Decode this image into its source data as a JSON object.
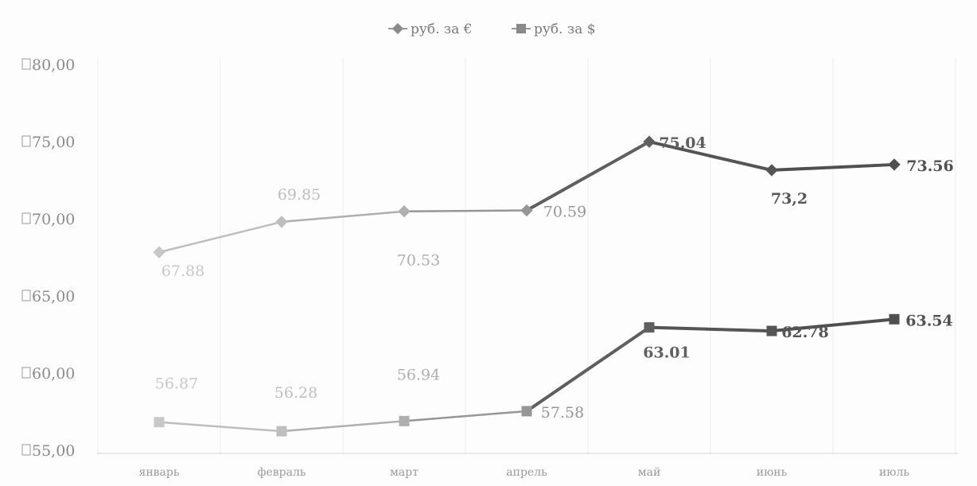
{
  "chart_data": {
    "type": "line",
    "categories": [
      "январь",
      "февраль",
      "март",
      "апрель",
      "май",
      "июнь",
      "июль"
    ],
    "series": [
      {
        "name": "руб. за €",
        "values": [
          67.88,
          69.85,
          70.53,
          70.59,
          75.04,
          73.2,
          73.56
        ],
        "labels": [
          "67.88",
          "69.85",
          "70.53",
          "70.59",
          "75.04",
          "73,2",
          "73.56"
        ]
      },
      {
        "name": "руб. за $",
        "values": [
          56.87,
          56.28,
          56.94,
          57.58,
          63.01,
          62.78,
          63.54
        ],
        "labels": [
          "56.87",
          "56.28",
          "56.94",
          "57.58",
          "63.01",
          "62.78",
          "63.54"
        ]
      }
    ],
    "y_ticks": [
      "80,00",
      "75,00",
      "70,00",
      "65,00",
      "60,00",
      "55,00"
    ],
    "ylim": [
      55,
      80
    ],
    "grid": "vertical",
    "legend_position": "top-center",
    "colors": {
      "early": "#c8c8c8",
      "late": "#5a5a5a",
      "grid": "#ececec"
    }
  }
}
